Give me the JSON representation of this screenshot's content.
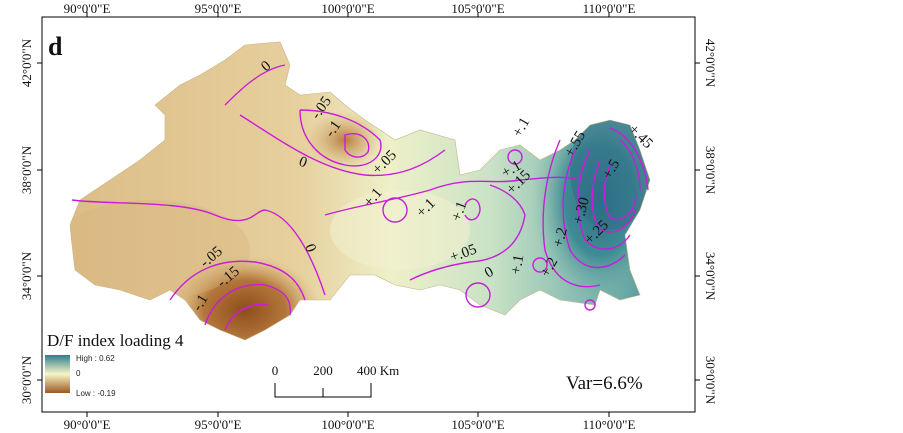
{
  "panel_letter": "d",
  "axis_labels": {
    "top": [
      "90°0'0\"E",
      "95°0'0\"E",
      "100°0'0\"E",
      "105°0'0\"E",
      "110°0'0\"E"
    ],
    "bottom": [
      "90°0'0\"E",
      "95°0'0\"E",
      "100°0'0\"E",
      "105°0'0\"E",
      "110°0'0\"E"
    ],
    "left": [
      "42°0'0\"N",
      "38°0'0\"N",
      "34°0'0\"N",
      "30°0'0\"N"
    ],
    "right": [
      "42°0'0\"N",
      "38°0'0\"N",
      "34°0'0\"N",
      "30°0'0\"N"
    ]
  },
  "contour_labels": [
    {
      "id": "c0a",
      "text": "0"
    },
    {
      "id": "c005a",
      "text": "-.05"
    },
    {
      "id": "c01a",
      "text": "-.1"
    },
    {
      "id": "c0b",
      "text": "0"
    },
    {
      "id": "cp005a",
      "text": "+.05"
    },
    {
      "id": "cp01a",
      "text": "+.1"
    },
    {
      "id": "cp01b",
      "text": "+.1"
    },
    {
      "id": "cp01c",
      "text": "+.1"
    },
    {
      "id": "cp01d",
      "text": "+.1"
    },
    {
      "id": "cp01e",
      "text": "+.1"
    },
    {
      "id": "cp015",
      "text": "+.15"
    },
    {
      "id": "cp055",
      "text": "+.55"
    },
    {
      "id": "cp045",
      "text": "+.45"
    },
    {
      "id": "cp05",
      "text": "+.5"
    },
    {
      "id": "cp030",
      "text": "+.30"
    },
    {
      "id": "cp025",
      "text": "+.25"
    },
    {
      "id": "cp02a",
      "text": "+.2"
    },
    {
      "id": "cp02b",
      "text": "+.2"
    },
    {
      "id": "cp01f",
      "text": "+.1"
    },
    {
      "id": "cp005b",
      "text": "+.05"
    },
    {
      "id": "c0c",
      "text": "0"
    },
    {
      "id": "c0d",
      "text": "0"
    },
    {
      "id": "c005b",
      "text": "-.05"
    },
    {
      "id": "c015",
      "text": "-.15"
    },
    {
      "id": "c01b",
      "text": "-.1"
    }
  ],
  "legend": {
    "title": "D/F index loading 4",
    "high_label": "High : 0.62",
    "zero_label": "0",
    "low_label": "Low : -0.19",
    "colors": {
      "high": "#2e7f8c",
      "mid": "#f7f3c8",
      "low": "#9a5a22"
    }
  },
  "scale_bar": {
    "labels": [
      "0",
      "200",
      "400 Km"
    ]
  },
  "variance_text": "Var=6.6%",
  "colors": {
    "contour": "#c81ed8",
    "frame": "#000000"
  }
}
